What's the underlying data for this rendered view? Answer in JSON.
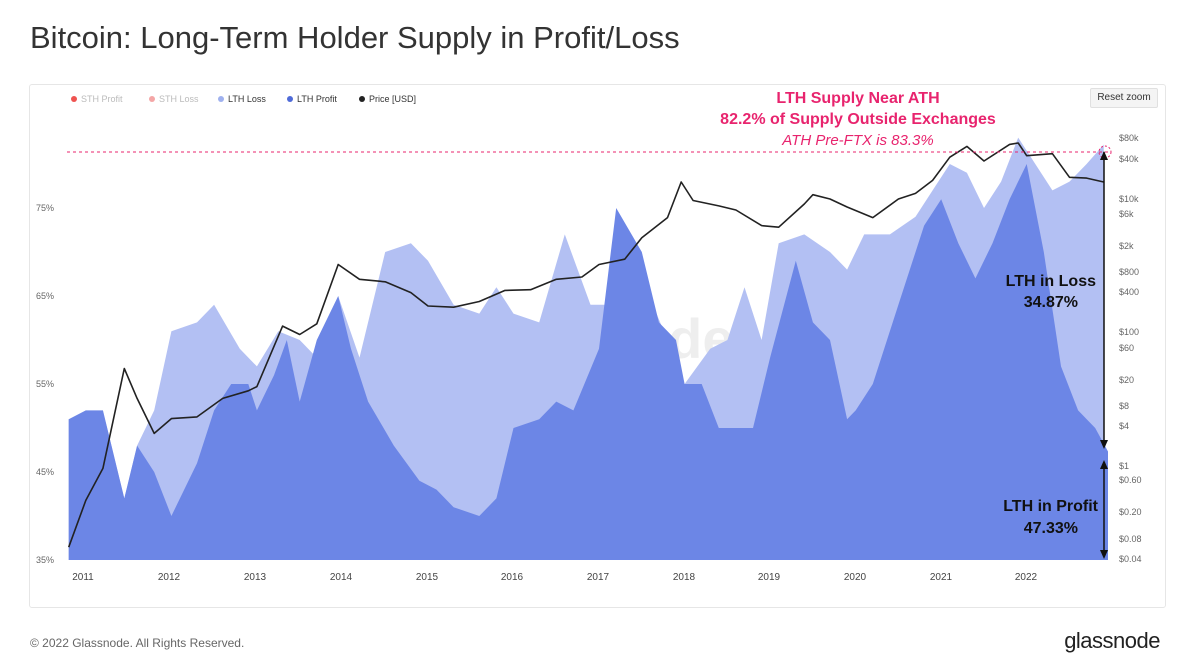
{
  "title": "Bitcoin: Long-Term Holder Supply in Profit/Loss",
  "footer": {
    "copyright": "© 2022 Glassnode. All Rights Reserved.",
    "brand": "glassnode"
  },
  "watermark": "glassnode",
  "reset_zoom": "Reset zoom",
  "legend": [
    {
      "label": "STH Profit",
      "color": "#ef5350",
      "active": false
    },
    {
      "label": "STH Loss",
      "color": "#f4a6a6",
      "active": false
    },
    {
      "label": "LTH Loss",
      "color": "#9fb1ef",
      "active": true
    },
    {
      "label": "LTH Profit",
      "color": "#4f6bd8",
      "active": true
    },
    {
      "label": "Price [USD]",
      "color": "#222222",
      "active": true
    }
  ],
  "annotations": {
    "ath_line1": "LTH Supply Near ATH",
    "ath_line2": "82.2% of Supply Outside Exchanges",
    "ath_line3": "ATH Pre-FTX is 83.3%",
    "loss_label": "LTH in Loss",
    "loss_value": "34.87%",
    "profit_label": "LTH in Profit",
    "profit_value": "47.33%"
  },
  "colors": {
    "lth_loss": "#b3c0f3",
    "lth_profit": "#6c86e6",
    "price": "#222222",
    "annotation": "#e8246e"
  },
  "chart_data": {
    "type": "area",
    "title": "Bitcoin: Long-Term Holder Supply in Profit/Loss",
    "left_axis": {
      "ticks": [
        "35%",
        "45%",
        "55%",
        "65%",
        "75%"
      ],
      "ylim": [
        35,
        82
      ],
      "unit": "%"
    },
    "right_axis": {
      "scale": "log",
      "ticks": [
        "$0.04",
        "$0.08",
        "$0.20",
        "$0.60",
        "$1",
        "$4",
        "$8",
        "$20",
        "$60",
        "$100",
        "$400",
        "$800",
        "$2k",
        "$6k",
        "$10k",
        "$40k",
        "$80k"
      ]
    },
    "x_ticks": [
      "2011",
      "2012",
      "2013",
      "2014",
      "2015",
      "2016",
      "2017",
      "2018",
      "2019",
      "2020",
      "2021",
      "2022"
    ],
    "reference_line": {
      "value_pct": 82.2,
      "style": "dashed"
    },
    "series": [
      {
        "name": "LTH Loss",
        "color": "#b3c0f3",
        "points": [
          [
            2010.8,
            51
          ],
          [
            2011.2,
            52
          ],
          [
            2011.45,
            42
          ],
          [
            2011.6,
            48
          ],
          [
            2011.8,
            52
          ],
          [
            2012.0,
            61
          ],
          [
            2012.3,
            62
          ],
          [
            2012.5,
            64
          ],
          [
            2012.8,
            59
          ],
          [
            2013.0,
            57
          ],
          [
            2013.25,
            61
          ],
          [
            2013.5,
            60
          ],
          [
            2013.8,
            57
          ],
          [
            2013.95,
            65
          ],
          [
            2014.2,
            58
          ],
          [
            2014.5,
            70
          ],
          [
            2014.8,
            71
          ],
          [
            2015.0,
            69
          ],
          [
            2015.3,
            64
          ],
          [
            2015.6,
            63
          ],
          [
            2015.8,
            66
          ],
          [
            2016.0,
            63
          ],
          [
            2016.3,
            62
          ],
          [
            2016.6,
            72
          ],
          [
            2016.9,
            64
          ],
          [
            2017.2,
            64
          ],
          [
            2017.5,
            67
          ],
          [
            2017.8,
            60
          ],
          [
            2018.0,
            55
          ],
          [
            2018.3,
            59
          ],
          [
            2018.5,
            60
          ],
          [
            2018.7,
            66
          ],
          [
            2018.9,
            60
          ],
          [
            2019.1,
            71
          ],
          [
            2019.4,
            72
          ],
          [
            2019.7,
            70
          ],
          [
            2019.9,
            68
          ],
          [
            2020.1,
            72
          ],
          [
            2020.4,
            72
          ],
          [
            2020.7,
            74
          ],
          [
            2020.9,
            77
          ],
          [
            2021.1,
            80
          ],
          [
            2021.3,
            79
          ],
          [
            2021.5,
            75
          ],
          [
            2021.7,
            78
          ],
          [
            2021.9,
            83
          ],
          [
            2022.1,
            80
          ],
          [
            2022.3,
            77
          ],
          [
            2022.5,
            78
          ],
          [
            2022.7,
            80
          ],
          [
            2022.9,
            82.2
          ]
        ]
      },
      {
        "name": "LTH Profit",
        "color": "#6c86e6",
        "points": [
          [
            2010.8,
            51
          ],
          [
            2011.0,
            52
          ],
          [
            2011.2,
            52
          ],
          [
            2011.45,
            42
          ],
          [
            2011.6,
            48
          ],
          [
            2011.8,
            45
          ],
          [
            2012.0,
            40
          ],
          [
            2012.3,
            46
          ],
          [
            2012.5,
            52
          ],
          [
            2012.7,
            55
          ],
          [
            2012.9,
            55
          ],
          [
            2013.0,
            52
          ],
          [
            2013.2,
            56
          ],
          [
            2013.35,
            60
          ],
          [
            2013.5,
            53
          ],
          [
            2013.7,
            60
          ],
          [
            2013.95,
            65
          ],
          [
            2014.1,
            59
          ],
          [
            2014.3,
            53
          ],
          [
            2014.6,
            48
          ],
          [
            2014.9,
            44
          ],
          [
            2015.1,
            43
          ],
          [
            2015.3,
            41
          ],
          [
            2015.6,
            40
          ],
          [
            2015.8,
            42
          ],
          [
            2016.0,
            50
          ],
          [
            2016.3,
            51
          ],
          [
            2016.5,
            53
          ],
          [
            2016.7,
            52
          ],
          [
            2017.0,
            59
          ],
          [
            2017.2,
            75
          ],
          [
            2017.5,
            70
          ],
          [
            2017.7,
            62
          ],
          [
            2017.9,
            60
          ],
          [
            2018.0,
            55
          ],
          [
            2018.2,
            55
          ],
          [
            2018.4,
            50
          ],
          [
            2018.6,
            50
          ],
          [
            2018.8,
            50
          ],
          [
            2019.0,
            58
          ],
          [
            2019.3,
            69
          ],
          [
            2019.5,
            62
          ],
          [
            2019.7,
            60
          ],
          [
            2019.9,
            51
          ],
          [
            2020.0,
            52
          ],
          [
            2020.2,
            55
          ],
          [
            2020.5,
            64
          ],
          [
            2020.8,
            73
          ],
          [
            2021.0,
            76
          ],
          [
            2021.2,
            71
          ],
          [
            2021.4,
            67
          ],
          [
            2021.6,
            71
          ],
          [
            2021.8,
            76
          ],
          [
            2022.0,
            80
          ],
          [
            2022.2,
            70
          ],
          [
            2022.4,
            57
          ],
          [
            2022.6,
            52
          ],
          [
            2022.8,
            50
          ],
          [
            2022.95,
            47.33
          ]
        ]
      },
      {
        "name": "Price [USD]",
        "axis": "right",
        "color": "#222222",
        "points": [
          [
            2010.8,
            0.06
          ],
          [
            2011.0,
            0.3
          ],
          [
            2011.2,
            0.9
          ],
          [
            2011.45,
            28
          ],
          [
            2011.6,
            10
          ],
          [
            2011.8,
            3
          ],
          [
            2012.0,
            5
          ],
          [
            2012.3,
            5.3
          ],
          [
            2012.6,
            10
          ],
          [
            2012.9,
            13
          ],
          [
            2013.0,
            15
          ],
          [
            2013.3,
            120
          ],
          [
            2013.5,
            90
          ],
          [
            2013.7,
            130
          ],
          [
            2013.95,
            1000
          ],
          [
            2014.2,
            600
          ],
          [
            2014.5,
            550
          ],
          [
            2014.8,
            380
          ],
          [
            2015.0,
            240
          ],
          [
            2015.3,
            230
          ],
          [
            2015.6,
            280
          ],
          [
            2015.9,
            410
          ],
          [
            2016.2,
            420
          ],
          [
            2016.5,
            600
          ],
          [
            2016.8,
            650
          ],
          [
            2017.0,
            1000
          ],
          [
            2017.3,
            1200
          ],
          [
            2017.5,
            2500
          ],
          [
            2017.8,
            5000
          ],
          [
            2017.96,
            17000
          ],
          [
            2018.1,
            9000
          ],
          [
            2018.4,
            7500
          ],
          [
            2018.6,
            6500
          ],
          [
            2018.9,
            3800
          ],
          [
            2019.1,
            3600
          ],
          [
            2019.4,
            8000
          ],
          [
            2019.5,
            11000
          ],
          [
            2019.7,
            9500
          ],
          [
            2019.9,
            7200
          ],
          [
            2020.2,
            5000
          ],
          [
            2020.5,
            9500
          ],
          [
            2020.7,
            11500
          ],
          [
            2020.9,
            18000
          ],
          [
            2021.1,
            40000
          ],
          [
            2021.3,
            58000
          ],
          [
            2021.5,
            35000
          ],
          [
            2021.8,
            62000
          ],
          [
            2021.9,
            65000
          ],
          [
            2022.0,
            42000
          ],
          [
            2022.3,
            45000
          ],
          [
            2022.5,
            20000
          ],
          [
            2022.7,
            19500
          ],
          [
            2022.9,
            17000
          ]
        ]
      }
    ]
  }
}
